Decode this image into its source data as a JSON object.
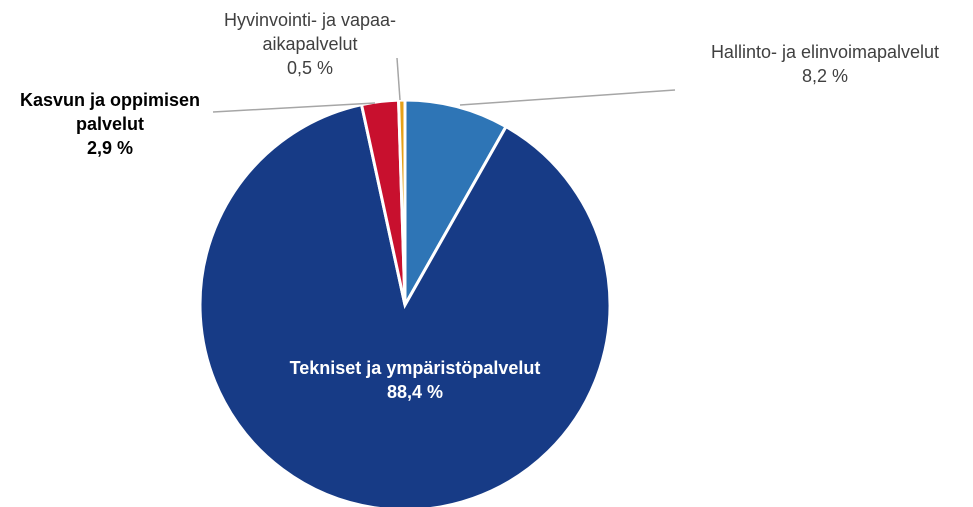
{
  "chart_data": {
    "type": "pie",
    "categories": [
      "Hallinto- ja elinvoimapalvelut",
      "Tekniset ja ympäristöpalvelut",
      "Kasvun ja oppimisen palvelut",
      "Hyvinvointi- ja vapaa-aikapalvelut"
    ],
    "values": [
      8.2,
      88.4,
      2.9,
      0.5
    ],
    "value_labels": [
      "8,2 %",
      "88,4 %",
      "2,9 %",
      "0,5 %"
    ],
    "colors": [
      "#2e75b6",
      "#173b86",
      "#c8102e",
      "#e6a118"
    ]
  }
}
